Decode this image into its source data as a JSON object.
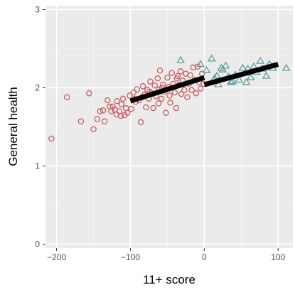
{
  "chart_data": {
    "type": "scatter",
    "xlabel": "11+ score",
    "ylabel": "General health",
    "xlim": [
      -215,
      120
    ],
    "ylim": [
      -0.05,
      3.05
    ],
    "x_ticks": [
      -200,
      -100,
      0,
      100
    ],
    "y_ticks": [
      0,
      1,
      2,
      3
    ],
    "x_tick_labels": [
      "−200",
      "−100",
      "0",
      "100"
    ],
    "y_tick_labels": [
      "0",
      "1",
      "2",
      "3"
    ],
    "grid": true,
    "legend": "none",
    "series": [
      {
        "marker": "circle",
        "color": "#cd5c5c",
        "points": [
          [
            -207,
            1.35
          ],
          [
            -186,
            1.88
          ],
          [
            -167,
            1.57
          ],
          [
            -156,
            1.93
          ],
          [
            -150,
            1.47
          ],
          [
            -145,
            1.6
          ],
          [
            -141,
            1.7
          ],
          [
            -137,
            1.71
          ],
          [
            -135,
            1.57
          ],
          [
            -131,
            1.84
          ],
          [
            -128,
            1.76
          ],
          [
            -124,
            1.76
          ],
          [
            -121,
            1.72
          ],
          [
            -118,
            1.83
          ],
          [
            -115,
            1.7
          ],
          [
            -112,
            1.79
          ],
          [
            -110,
            1.86
          ],
          [
            -108,
            1.65
          ],
          [
            -106,
            1.74
          ],
          [
            -104,
            1.68
          ],
          [
            -101,
            1.9
          ],
          [
            -99,
            1.73
          ],
          [
            -96,
            1.94
          ],
          [
            -93,
            1.82
          ],
          [
            -91,
            1.98
          ],
          [
            -88,
            1.84
          ],
          [
            -86,
            1.56
          ],
          [
            -83,
            2.02
          ],
          [
            -81,
            1.91
          ],
          [
            -79,
            1.75
          ],
          [
            -77,
            1.97
          ],
          [
            -75,
            1.86
          ],
          [
            -73,
            2.08
          ],
          [
            -71,
            1.93
          ],
          [
            -69,
            1.74
          ],
          [
            -67,
            2.03
          ],
          [
            -65,
            1.89
          ],
          [
            -63,
            2.12
          ],
          [
            -61,
            1.98
          ],
          [
            -60,
            2.22
          ],
          [
            -58,
            1.86
          ],
          [
            -56,
            2.04
          ],
          [
            -54,
            1.95
          ],
          [
            -52,
            1.68
          ],
          [
            -50,
            2.13
          ],
          [
            -48,
            2.01
          ],
          [
            -46,
            1.81
          ],
          [
            -44,
            2.19
          ],
          [
            -42,
            2.05
          ],
          [
            -40,
            1.94
          ],
          [
            -38,
            1.74
          ],
          [
            -36,
            2.15
          ],
          [
            -34,
            2.04
          ],
          [
            -32,
            2.21
          ],
          [
            -31,
            1.92
          ],
          [
            -29,
            2.09
          ],
          [
            -27,
            1.97
          ],
          [
            -25,
            2.18
          ],
          [
            -23,
            1.88
          ],
          [
            -21,
            2.05
          ],
          [
            -19,
            2.16
          ],
          [
            -17,
            1.97
          ],
          [
            -15,
            2.26
          ],
          [
            -13,
            2.1
          ],
          [
            -11,
            1.93
          ],
          [
            -9,
            2.27
          ],
          [
            -7,
            2.07
          ],
          [
            -5,
            1.99
          ],
          [
            -3,
            2.18
          ],
          [
            -1,
            2.05
          ],
          [
            -37,
            2.12
          ],
          [
            -47,
            1.9
          ],
          [
            -57,
            2.0
          ],
          [
            -62,
            1.8
          ],
          [
            -74,
            1.95
          ],
          [
            -84,
            1.88
          ],
          [
            -94,
            1.86
          ],
          [
            -113,
            1.64
          ],
          [
            -119,
            1.66
          ],
          [
            -126,
            1.7
          ]
        ]
      },
      {
        "marker": "triangle",
        "color": "#5f9ea0",
        "points": [
          [
            -32,
            2.35
          ],
          [
            -5,
            2.3
          ],
          [
            3,
            2.22
          ],
          [
            10,
            2.37
          ],
          [
            14,
            2.12
          ],
          [
            19,
            2.04
          ],
          [
            25,
            2.23
          ],
          [
            29,
            2.28
          ],
          [
            33,
            2.14
          ],
          [
            38,
            2.08
          ],
          [
            42,
            2.16
          ],
          [
            47,
            2.1
          ],
          [
            52,
            2.25
          ],
          [
            56,
            2.19
          ],
          [
            59,
            2.24
          ],
          [
            63,
            2.13
          ],
          [
            67,
            2.27
          ],
          [
            71,
            2.2
          ],
          [
            76,
            2.34
          ],
          [
            79,
            2.24
          ],
          [
            84,
            2.15
          ],
          [
            88,
            2.3
          ],
          [
            93,
            2.25
          ],
          [
            111,
            2.25
          ],
          [
            36,
            2.07
          ],
          [
            57,
            2.07
          ],
          [
            17,
            2.15
          ],
          [
            23,
            2.25
          ]
        ]
      }
    ],
    "fit_lines": [
      {
        "color": "#000000",
        "x": [
          -100,
          0
        ],
        "y": [
          1.83,
          2.13
        ]
      },
      {
        "color": "#000000",
        "x": [
          0,
          100
        ],
        "y": [
          2.04,
          2.3
        ]
      }
    ]
  }
}
